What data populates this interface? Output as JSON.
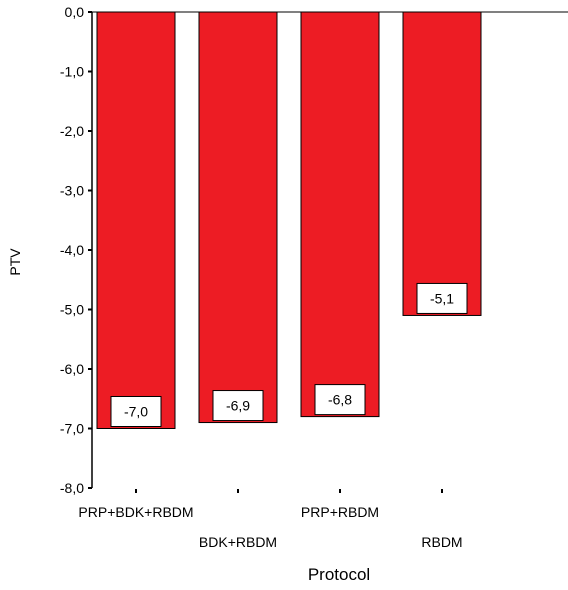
{
  "chart_data": {
    "type": "bar",
    "categories": [
      "PRP+BDK+RBDM",
      "BDK+RBDM",
      "PRP+RBDM",
      "RBDM"
    ],
    "values": [
      -7.0,
      -6.9,
      -6.8,
      -5.1
    ],
    "data_labels": [
      "-7,0",
      "-6,9",
      "-6,8",
      "-5,1"
    ],
    "xlabel": "Protocol",
    "ylabel": "PTV",
    "ylim": [
      -8.0,
      0.0
    ],
    "yticks": [
      {
        "value": 0.0,
        "label": "0,0"
      },
      {
        "value": -1.0,
        "label": "-1,0"
      },
      {
        "value": -2.0,
        "label": "-2,0"
      },
      {
        "value": -3.0,
        "label": "-3,0"
      },
      {
        "value": -4.0,
        "label": "-4,0"
      },
      {
        "value": -5.0,
        "label": "-5,0"
      },
      {
        "value": -6.0,
        "label": "-6,0"
      },
      {
        "value": -7.0,
        "label": "-7,0"
      },
      {
        "value": -8.0,
        "label": "-8,0"
      }
    ],
    "grid": false,
    "legend": "none",
    "colors": {
      "bar_fill": "#ed1c24",
      "bar_stroke": "#000000",
      "axis": "#000000",
      "label_box": "#ffffff"
    }
  }
}
